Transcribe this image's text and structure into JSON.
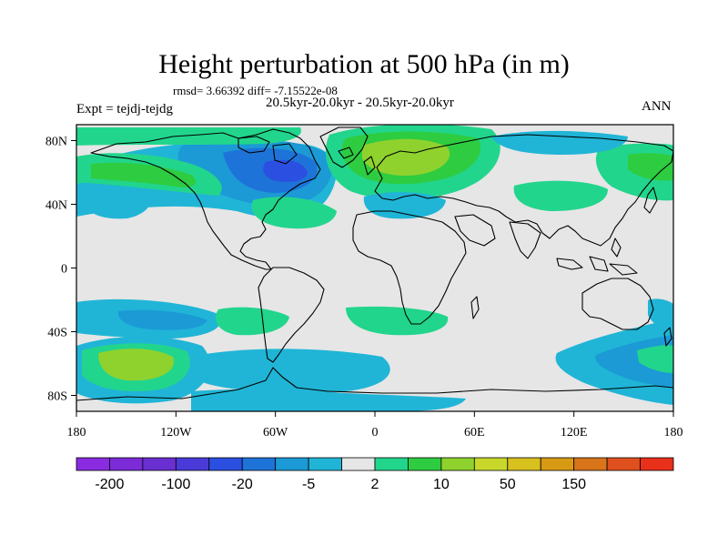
{
  "title": "Height perturbation at 500 hPa (in m)",
  "stats_line": "rmsd= 3.66392 diff= -7.15522e-08",
  "period_line": "20.5kyr-20.0kyr - 20.5kyr-20.0kyr",
  "experiment_label": "Expt = tejdj-tejdg",
  "season_label": "ANN",
  "map_data": {
    "type": "filled-contour world map",
    "variable": "500 hPa geopotential height perturbation",
    "units": "m",
    "lon_range": [
      -180,
      180
    ],
    "lat_range": [
      -90,
      90
    ],
    "x_ticks": [
      {
        "lon": -180,
        "label": "180"
      },
      {
        "lon": -120,
        "label": "120W"
      },
      {
        "lon": -60,
        "label": "60W"
      },
      {
        "lon": 0,
        "label": "0"
      },
      {
        "lon": 60,
        "label": "60E"
      },
      {
        "lon": 120,
        "label": "120E"
      },
      {
        "lon": 180,
        "label": "180"
      }
    ],
    "y_ticks": [
      {
        "lat": 80,
        "label": "80N"
      },
      {
        "lat": 40,
        "label": "40N"
      },
      {
        "lat": 0,
        "label": "0"
      },
      {
        "lat": -40,
        "label": "40S"
      },
      {
        "lat": -80,
        "label": "80S"
      }
    ],
    "colorbar": {
      "colors": [
        "#8a2be2",
        "#7b2bd8",
        "#6a2fd0",
        "#4a3bd9",
        "#2b4fe0",
        "#1e73d8",
        "#1b9ad6",
        "#20b5d6",
        "#e6e6e6",
        "#22d58c",
        "#2ecc40",
        "#8fd22e",
        "#c8d82a",
        "#d8c01e",
        "#d89a14",
        "#d8741a",
        "#e0501e",
        "#e8301a"
      ],
      "labels": [
        {
          "after_box": 1,
          "text": "-200"
        },
        {
          "after_box": 3,
          "text": "-100"
        },
        {
          "after_box": 5,
          "text": "-20"
        },
        {
          "after_box": 7,
          "text": "-5"
        },
        {
          "after_box": 9,
          "text": "2"
        },
        {
          "after_box": 11,
          "text": "10"
        },
        {
          "after_box": 13,
          "text": "50"
        },
        {
          "after_box": 15,
          "text": "150"
        }
      ]
    }
  }
}
